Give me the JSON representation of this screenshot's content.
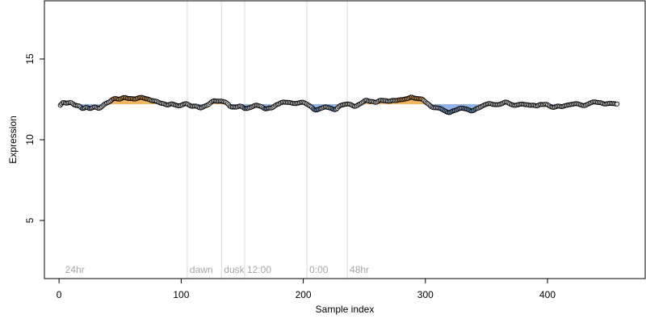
{
  "chart_data": {
    "type": "scatter",
    "title": "",
    "xlabel": "Sample index",
    "ylabel": "Expression",
    "xlim": [
      -12,
      480
    ],
    "ylim": [
      1.4,
      18.6
    ],
    "x_ticks": [
      0,
      100,
      200,
      300,
      400
    ],
    "y_ticks": [
      5,
      10,
      15
    ],
    "baseline": 12.2,
    "grid": false,
    "legend": "none",
    "colors": {
      "point_fill": "#e6e6e6",
      "point_stroke": "#000000",
      "above_baseline": "#f5b35d",
      "below_baseline": "#8fb3e6",
      "vline": "#d9d9d9",
      "annotation_text": "#a6a6a6"
    },
    "phase_markers": [
      {
        "x": 105,
        "label": "dawn"
      },
      {
        "x": 133,
        "label": "dusk"
      },
      {
        "x": 152,
        "label": "12:00"
      },
      {
        "x": 203,
        "label": "0:00"
      },
      {
        "x": 236,
        "label": "48hr"
      }
    ],
    "phase_start_label": {
      "x": 3,
      "label": "24hr"
    },
    "series": [
      {
        "x_start": 1,
        "x_step": 1,
        "values": [
          12.13,
          12.22,
          12.29,
          12.3,
          12.28,
          12.26,
          12.27,
          12.29,
          12.3,
          12.29,
          12.24,
          12.18,
          12.14,
          12.12,
          12.11,
          12.1,
          12.06,
          11.99,
          11.94,
          11.94,
          11.97,
          12.0,
          11.99,
          11.96,
          11.94,
          11.94,
          11.97,
          12.0,
          12.02,
          12.01,
          11.98,
          11.95,
          11.95,
          11.99,
          12.05,
          12.12,
          12.18,
          12.23,
          12.27,
          12.3,
          12.34,
          12.39,
          12.45,
          12.5,
          12.54,
          12.55,
          12.54,
          12.52,
          12.51,
          12.52,
          12.55,
          12.59,
          12.61,
          12.61,
          12.59,
          12.56,
          12.55,
          12.55,
          12.55,
          12.54,
          12.53,
          12.52,
          12.53,
          12.56,
          12.59,
          12.61,
          12.62,
          12.61,
          12.59,
          12.56,
          12.54,
          12.53,
          12.51,
          12.48,
          12.45,
          12.42,
          12.41,
          12.4,
          12.39,
          12.37,
          12.34,
          12.3,
          12.27,
          12.25,
          12.24,
          12.22,
          12.19,
          12.16,
          12.15,
          12.17,
          12.2,
          12.22,
          12.21,
          12.18,
          12.15,
          12.13,
          12.11,
          12.1,
          12.1,
          12.13,
          12.16,
          12.2,
          12.22,
          12.23,
          12.21,
          12.17,
          12.12,
          12.09,
          12.07,
          12.08,
          12.08,
          12.08,
          12.06,
          12.02,
          11.99,
          11.97,
          11.99,
          12.03,
          12.07,
          12.1,
          12.13,
          12.16,
          12.21,
          12.28,
          12.35,
          12.39,
          12.41,
          12.4,
          12.39,
          12.38,
          12.39,
          12.39,
          12.39,
          12.37,
          12.35,
          12.33,
          12.29,
          12.23,
          12.15,
          12.07,
          12.03,
          12.02,
          12.02,
          12.02,
          12.02,
          12.03,
          12.06,
          12.08,
          12.07,
          12.03,
          11.98,
          11.94,
          11.93,
          11.94,
          11.96,
          11.98,
          12.0,
          12.03,
          12.07,
          12.11,
          12.13,
          12.13,
          12.11,
          12.09,
          12.07,
          12.04,
          11.99,
          11.94,
          11.91,
          11.92,
          11.94,
          11.96,
          11.96,
          11.97,
          12.0,
          12.05,
          12.11,
          12.16,
          12.19,
          12.22,
          12.26,
          12.3,
          12.32,
          12.33,
          12.32,
          12.31,
          12.31,
          12.31,
          12.3,
          12.28,
          12.26,
          12.25,
          12.24,
          12.24,
          12.26,
          12.27,
          12.29,
          12.31,
          12.32,
          12.31,
          12.28,
          12.24,
          12.2,
          12.15,
          12.11,
          12.06,
          12.0,
          11.93,
          11.87,
          11.84,
          11.84,
          11.87,
          11.9,
          11.93,
          11.95,
          11.98,
          12.01,
          12.03,
          12.02,
          12.0,
          11.98,
          11.96,
          11.94,
          11.9,
          11.87,
          11.86,
          11.89,
          11.96,
          12.04,
          12.1,
          12.13,
          12.15,
          12.17,
          12.19,
          12.2,
          12.21,
          12.21,
          12.2,
          12.17,
          12.13,
          12.09,
          12.07,
          12.08,
          12.11,
          12.16,
          12.2,
          12.24,
          12.29,
          12.34,
          12.4,
          12.44,
          12.44,
          12.41,
          12.38,
          12.37,
          12.37,
          12.36,
          12.33,
          12.31,
          12.32,
          12.36,
          12.41,
          12.44,
          12.44,
          12.43,
          12.42,
          12.42,
          12.41,
          12.39,
          12.38,
          12.39,
          12.41,
          12.43,
          12.43,
          12.43,
          12.43,
          12.44,
          12.46,
          12.47,
          12.48,
          12.48,
          12.49,
          12.51,
          12.53,
          12.54,
          12.56,
          12.6,
          12.63,
          12.63,
          12.6,
          12.57,
          12.56,
          12.55,
          12.54,
          12.54,
          12.53,
          12.52,
          12.48,
          12.41,
          12.34,
          12.28,
          12.23,
          12.17,
          12.1,
          12.04,
          12.0,
          11.98,
          11.98,
          11.98,
          11.97,
          11.96,
          11.94,
          11.91,
          11.87,
          11.82,
          11.78,
          11.74,
          11.7,
          11.68,
          11.69,
          11.72,
          11.76,
          11.79,
          11.81,
          11.83,
          11.86,
          11.9,
          11.93,
          11.95,
          11.95,
          11.94,
          11.92,
          11.91,
          11.89,
          11.86,
          11.83,
          11.79,
          11.78,
          11.8,
          11.84,
          11.89,
          11.93,
          11.95,
          11.98,
          12.02,
          12.06,
          12.1,
          12.14,
          12.17,
          12.2,
          12.22,
          12.24,
          12.24,
          12.22,
          12.19,
          12.18,
          12.17,
          12.17,
          12.17,
          12.18,
          12.19,
          12.22,
          12.25,
          12.29,
          12.32,
          12.33,
          12.31,
          12.27,
          12.23,
          12.19,
          12.16,
          12.14,
          12.13,
          12.13,
          12.15,
          12.17,
          12.19,
          12.2,
          12.21,
          12.2,
          12.18,
          12.17,
          12.17,
          12.16,
          12.14,
          12.13,
          12.13,
          12.14,
          12.13,
          12.11,
          12.09,
          12.11,
          12.15,
          12.18,
          12.18,
          12.18,
          12.18,
          12.19,
          12.19,
          12.16,
          12.12,
          12.07,
          12.03,
          12.01,
          12.0,
          12.02,
          12.05,
          12.08,
          12.08,
          12.07,
          12.05,
          12.05,
          12.07,
          12.1,
          12.12,
          12.13,
          12.15,
          12.16,
          12.18,
          12.19,
          12.2,
          12.22,
          12.23,
          12.23,
          12.21,
          12.19,
          12.16,
          12.14,
          12.12,
          12.11,
          12.13,
          12.16,
          12.2,
          12.24,
          12.27,
          12.3,
          12.33,
          12.34,
          12.34,
          12.32,
          12.31,
          12.3,
          12.3,
          12.28,
          12.25,
          12.22,
          12.21,
          12.21,
          12.23,
          12.24,
          12.25,
          12.25,
          12.24,
          12.24,
          12.23,
          12.21,
          12.21
        ]
      }
    ]
  }
}
